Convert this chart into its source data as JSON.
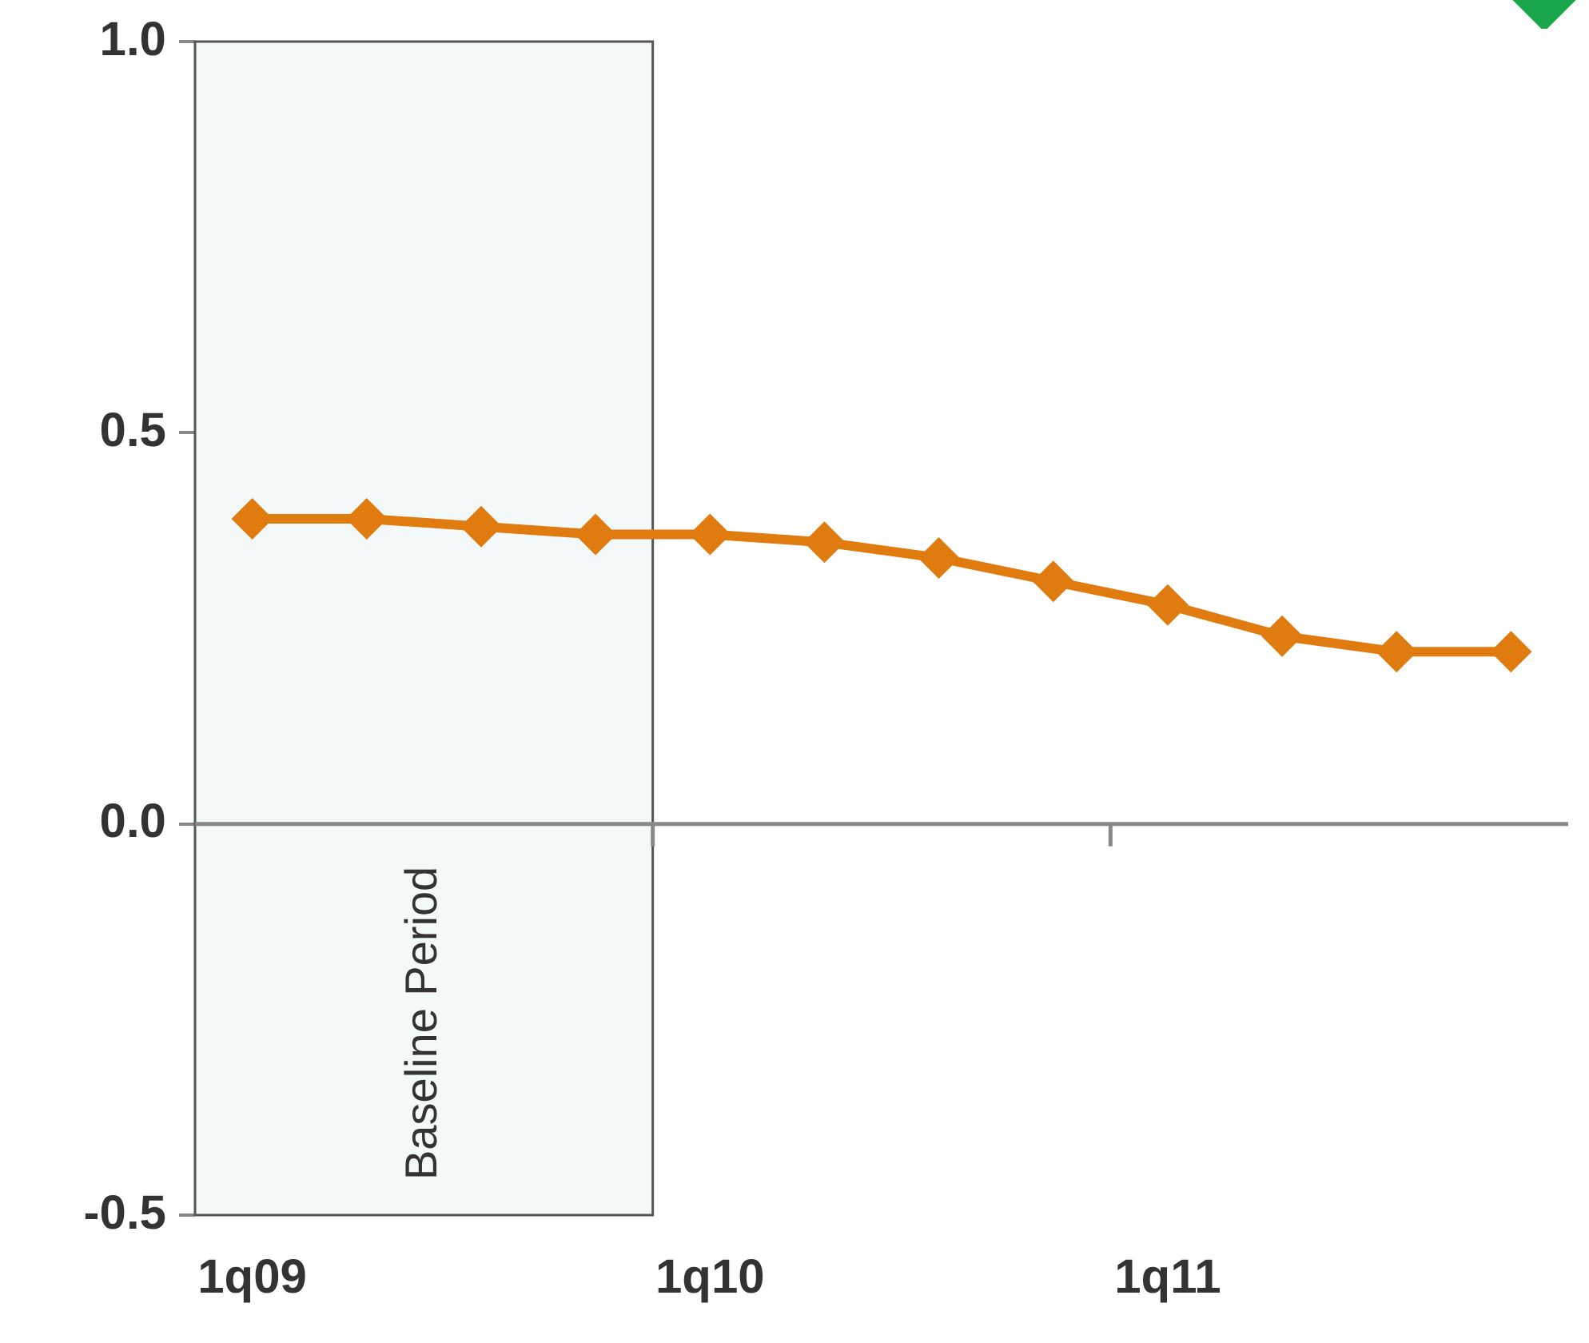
{
  "chart_data": {
    "type": "line",
    "categories": [
      "1q09",
      null,
      null,
      null,
      "1q10",
      null,
      null,
      null,
      "1q11",
      null,
      null,
      null
    ],
    "series": [
      {
        "color": "#e07b10",
        "values": [
          0.39,
          0.39,
          0.38,
          0.37,
          0.37,
          0.36,
          0.34,
          0.31,
          0.28,
          0.24,
          0.22,
          0.22
        ]
      }
    ],
    "ylim": [
      -0.5,
      1.0
    ],
    "yticks": [
      {
        "value": -0.5,
        "label": "-0.5"
      },
      {
        "value": 0,
        "label": "0.0"
      },
      {
        "value": 0.5,
        "label": "0.5"
      },
      {
        "value": 1.0,
        "label": "1.0"
      }
    ],
    "bands": [
      {
        "axis": "x",
        "from": "1q09",
        "to": "1q10",
        "label": "Baseline Period",
        "color": "#f3f9f9"
      }
    ],
    "ref_lines": [
      {
        "axis": "y",
        "value": 0,
        "color": "#888888"
      }
    ],
    "marker": "diamond",
    "line_style": "solid",
    "grid": false,
    "legend": false
  }
}
